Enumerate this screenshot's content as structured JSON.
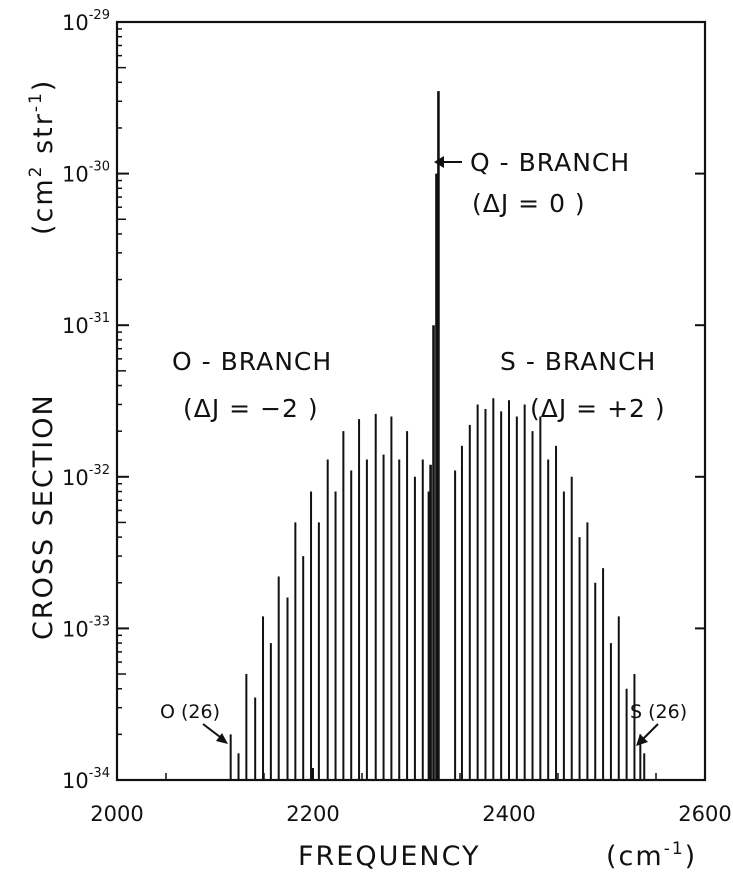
{
  "chart_data": {
    "type": "bar",
    "xlabel": "FREQUENCY",
    "xunit": "(cm-1)",
    "ylabel": "CROSS SECTION",
    "yunit": "(cm2 str-1)",
    "xlim": [
      2000,
      2600
    ],
    "xticks": [
      2000,
      2200,
      2400,
      2600
    ],
    "yscale": "log",
    "ylim": [
      1e-34,
      1e-29
    ],
    "yticks": [
      {
        "base": "10",
        "exp": "-29",
        "value": 1e-29
      },
      {
        "base": "10",
        "exp": "-30",
        "value": 1e-30
      },
      {
        "base": "10",
        "exp": "-31",
        "value": 1e-31
      },
      {
        "base": "10",
        "exp": "-32",
        "value": 1e-32
      },
      {
        "base": "10",
        "exp": "-33",
        "value": 1e-33
      },
      {
        "base": "10",
        "exp": "-34",
        "value": 1e-34
      }
    ],
    "grid": false,
    "series": [
      {
        "name": "O-BRANCH",
        "x": [
          2116,
          2124,
          2132,
          2141,
          2149,
          2157,
          2165,
          2174,
          2182,
          2190,
          2198,
          2206,
          2215,
          2223,
          2231,
          2239,
          2247,
          2255,
          2264,
          2272,
          2280,
          2288,
          2296,
          2304,
          2312,
          2318
        ],
        "values": [
          2e-34,
          1.5e-34,
          5e-34,
          3.5e-34,
          1.2e-33,
          8e-34,
          2.2e-33,
          1.6e-33,
          5e-33,
          3e-33,
          8e-33,
          5e-33,
          1.3e-32,
          8e-33,
          2e-32,
          1.1e-32,
          2.4e-32,
          1.3e-32,
          2.6e-32,
          1.4e-32,
          2.5e-32,
          1.3e-32,
          2e-32,
          1e-32,
          1.3e-32,
          8e-33
        ]
      },
      {
        "name": "Q-BRANCH",
        "x": [
          2320,
          2323,
          2326,
          2328
        ],
        "values": [
          1.2e-32,
          1e-31,
          1e-30,
          3.5e-30
        ]
      },
      {
        "name": "S-BRANCH",
        "x": [
          2345,
          2352,
          2360,
          2368,
          2376,
          2384,
          2392,
          2400,
          2408,
          2416,
          2424,
          2432,
          2440,
          2448,
          2456,
          2464,
          2472,
          2480,
          2488,
          2496,
          2504,
          2512,
          2520,
          2528,
          2534,
          2538
        ],
        "values": [
          1.1e-32,
          1.6e-32,
          2.2e-32,
          3e-32,
          2.8e-32,
          3.3e-32,
          2.7e-32,
          3.2e-32,
          2.5e-32,
          3e-32,
          2e-32,
          2.5e-32,
          1.3e-32,
          1.6e-32,
          8e-33,
          1e-32,
          4e-33,
          5e-33,
          2e-33,
          2.5e-33,
          8e-34,
          1.2e-33,
          4e-34,
          5e-34,
          2e-34,
          1.5e-34
        ]
      }
    ],
    "annotations": {
      "q_branch": "Q - BRANCH",
      "q_rule": "(ΔJ = 0 )",
      "o_branch": "O - BRANCH",
      "o_rule": "(ΔJ = −2 )",
      "s_branch": "S - BRANCH",
      "s_rule": "(ΔJ = +2 )",
      "o_end": "O (26)",
      "s_end": "S (26)"
    }
  }
}
